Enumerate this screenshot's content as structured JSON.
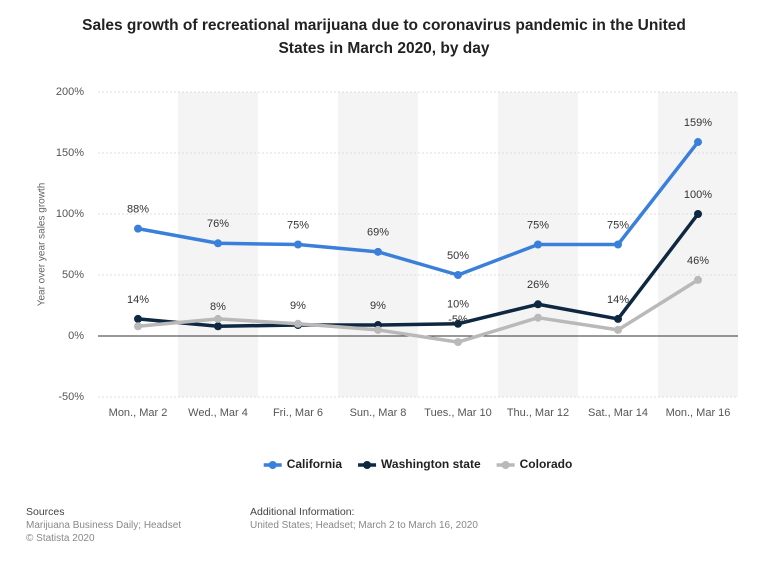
{
  "chart_data": {
    "type": "line",
    "title": "Sales growth of recreational marijuana due to coronavirus pandemic in the United States in March 2020, by day",
    "y_label": "Year over year sales growth",
    "categories": [
      "Mon., Mar 2",
      "Wed., Mar 4",
      "Fri., Mar 6",
      "Sun., Mar 8",
      "Tues., Mar 10",
      "Thu., Mar 12",
      "Sat., Mar 14",
      "Mon., Mar 16"
    ],
    "series": [
      {
        "name": "California",
        "color": "#3a7fd9",
        "values": [
          88,
          76,
          75,
          69,
          50,
          75,
          75,
          159
        ],
        "value_labels": [
          "88%",
          "76%",
          "75%",
          "69%",
          "50%",
          "75%",
          "75%",
          "159%"
        ]
      },
      {
        "name": "Washington state",
        "color": "#0e2841",
        "values": [
          14,
          8,
          9,
          9,
          10,
          26,
          14,
          100
        ],
        "value_labels": [
          "14%",
          "8%",
          "9%",
          "9%",
          "10%",
          "26%",
          "14%",
          "100%"
        ]
      },
      {
        "name": "Colorado",
        "color": "#b9b9b9",
        "values": [
          8,
          14,
          10,
          5,
          -5,
          15,
          5,
          46
        ],
        "value_labels": [
          null,
          null,
          null,
          null,
          "-5%",
          null,
          null,
          "46%"
        ]
      }
    ],
    "ylim": [
      -50,
      200
    ],
    "yticks": [
      {
        "value": -50,
        "label": "-50%"
      },
      {
        "value": 0,
        "label": "0%"
      },
      {
        "value": 50,
        "label": "50%"
      },
      {
        "value": 100,
        "label": "100%"
      },
      {
        "value": 150,
        "label": "150%"
      },
      {
        "value": 200,
        "label": "200%"
      }
    ],
    "grid": true
  },
  "footer": {
    "sources_label": "Sources",
    "sources": "Marijuana Business Daily; Headset",
    "copyright": "© Statista 2020",
    "additional_label": "Additional Information:",
    "additional": "United States; Headset; March 2 to March 16, 2020"
  }
}
